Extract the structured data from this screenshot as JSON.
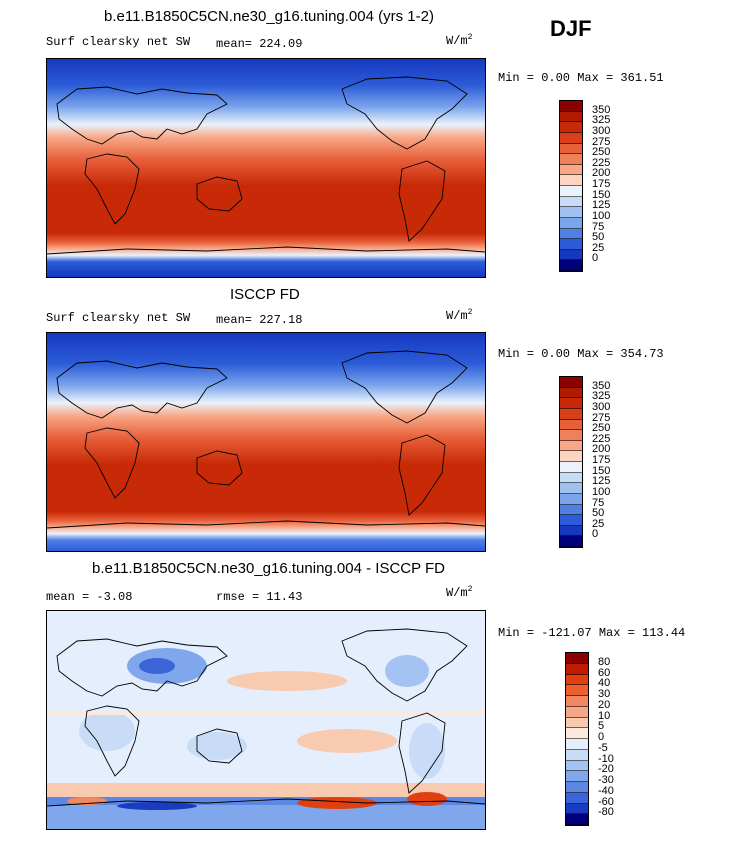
{
  "season": "DJF",
  "panels": [
    {
      "title": "b.e11.B1850C5CN.ne30_g16.tuning.004 (yrs 1-2)",
      "left_label": "Surf clearsky net SW",
      "mid_label": "mean= 224.09",
      "units_base": "W/m",
      "units_exp": "2",
      "minmax": "Min =   0.00 Max = 361.51"
    },
    {
      "title": "ISCCP FD",
      "left_label": "Surf clearsky net SW",
      "mid_label": "mean= 227.18",
      "units_base": "W/m",
      "units_exp": "2",
      "minmax": "Min =   0.00 Max = 354.73"
    },
    {
      "title": "b.e11.B1850C5CN.ne30_g16.tuning.004 - ISCCP FD",
      "left_label": "mean =  -3.08",
      "mid_label": "rmse =  11.43",
      "units_base": "W/m",
      "units_exp": "2",
      "minmax": "Min = -121.07 Max = 113.44"
    }
  ],
  "colorbars": {
    "abs_labels": [
      "350",
      "325",
      "300",
      "275",
      "250",
      "225",
      "200",
      "175",
      "150",
      "125",
      "100",
      "75",
      "50",
      "25",
      "0"
    ],
    "abs_colors": [
      "#8b0000",
      "#b01a00",
      "#c82a08",
      "#d8401a",
      "#e8603a",
      "#f0805a",
      "#f8a888",
      "#fcd4c0",
      "#eaf2fc",
      "#c8dcf8",
      "#a0c0f0",
      "#7aa4ec",
      "#5080e4",
      "#2c5cd8",
      "#1638c0",
      "#00007a"
    ],
    "diff_labels": [
      "80",
      "60",
      "40",
      "30",
      "20",
      "10",
      "5",
      "0",
      "-5",
      "-10",
      "-20",
      "-30",
      "-40",
      "-60",
      "-80"
    ],
    "diff_colors": [
      "#8b0000",
      "#c01a00",
      "#e04010",
      "#ec6030",
      "#f08860",
      "#f4a888",
      "#f8cab0",
      "#fce8dc",
      "#e4eefc",
      "#c8dcf8",
      "#a4c2f2",
      "#80a6ec",
      "#5c88e4",
      "#3a64d8",
      "#1a3cc0",
      "#00007a"
    ]
  },
  "chart_data": [
    {
      "type": "heatmap",
      "title": "b.e11.B1850C5CN.ne30_g16.tuning.004 (yrs 1-2)",
      "variable": "Surf clearsky net SW",
      "units": "W/m2",
      "mean": 224.09,
      "min": 0.0,
      "max": 361.51,
      "contour_levels": [
        0,
        25,
        50,
        75,
        100,
        125,
        150,
        175,
        200,
        225,
        250,
        275,
        300,
        325,
        350
      ]
    },
    {
      "type": "heatmap",
      "title": "ISCCP FD",
      "variable": "Surf clearsky net SW",
      "units": "W/m2",
      "mean": 227.18,
      "min": 0.0,
      "max": 354.73,
      "contour_levels": [
        0,
        25,
        50,
        75,
        100,
        125,
        150,
        175,
        200,
        225,
        250,
        275,
        300,
        325,
        350
      ]
    },
    {
      "type": "heatmap",
      "title": "b.e11.B1850C5CN.ne30_g16.tuning.004 - ISCCP FD",
      "units": "W/m2",
      "mean": -3.08,
      "rmse": 11.43,
      "min": -121.07,
      "max": 113.44,
      "contour_levels": [
        -80,
        -60,
        -40,
        -30,
        -20,
        -10,
        -5,
        0,
        5,
        10,
        20,
        30,
        40,
        60,
        80
      ]
    }
  ]
}
